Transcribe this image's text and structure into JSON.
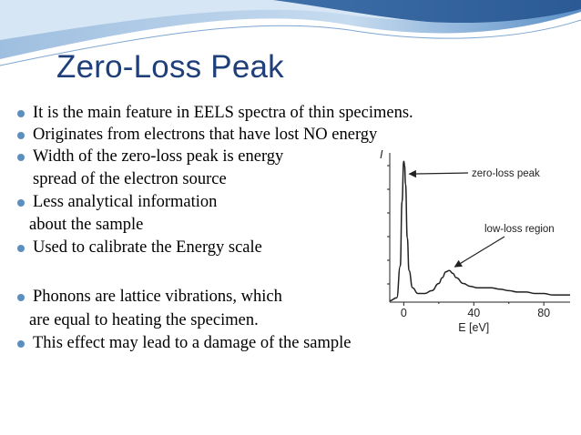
{
  "slide": {
    "title": "Zero-Loss Peak",
    "bullets": [
      {
        "lines": [
          "It is the main feature in EELS spectra of thin specimens."
        ]
      },
      {
        "lines": [
          "Originates from electrons that have lost NO energy"
        ]
      },
      {
        "lines": [
          "Width of the zero-loss peak is energy",
          "spread of the electron source"
        ]
      },
      {
        "lines": [
          "Less analytical information",
          "about the sample"
        ]
      },
      {
        "lines": [
          "Used to calibrate the Energy scale"
        ]
      },
      {
        "lines": [
          "Phonons are lattice vibrations, which",
          "are equal to heating the specimen."
        ]
      },
      {
        "lines": [
          "This effect may lead to a damage of the sample"
        ]
      }
    ]
  },
  "figure": {
    "annotations": {
      "zero_loss": "zero-loss peak",
      "low_loss": "low-loss region"
    },
    "x_ticks": [
      "0",
      "40",
      "80"
    ],
    "x_label": "E [eV]",
    "y_label_fragment": "I"
  },
  "chart_data": {
    "type": "line",
    "xlabel": "E [eV]",
    "x_ticks": [
      0,
      40,
      80
    ],
    "xlim": [
      -8,
      95
    ],
    "series": [
      {
        "x": [
          -8,
          -4,
          -2,
          -1,
          0,
          0.5,
          1,
          2,
          3,
          5,
          8,
          12,
          16,
          20,
          22,
          24,
          26,
          28,
          30,
          34,
          38,
          42,
          46,
          50,
          55,
          60,
          65,
          70,
          75,
          80,
          85,
          90,
          95
        ],
        "y": [
          0.01,
          0.03,
          0.25,
          0.7,
          0.98,
          0.95,
          0.82,
          0.45,
          0.22,
          0.1,
          0.06,
          0.06,
          0.08,
          0.13,
          0.17,
          0.21,
          0.22,
          0.2,
          0.17,
          0.13,
          0.11,
          0.1,
          0.1,
          0.1,
          0.09,
          0.08,
          0.07,
          0.07,
          0.06,
          0.06,
          0.05,
          0.05,
          0.05
        ]
      }
    ]
  }
}
